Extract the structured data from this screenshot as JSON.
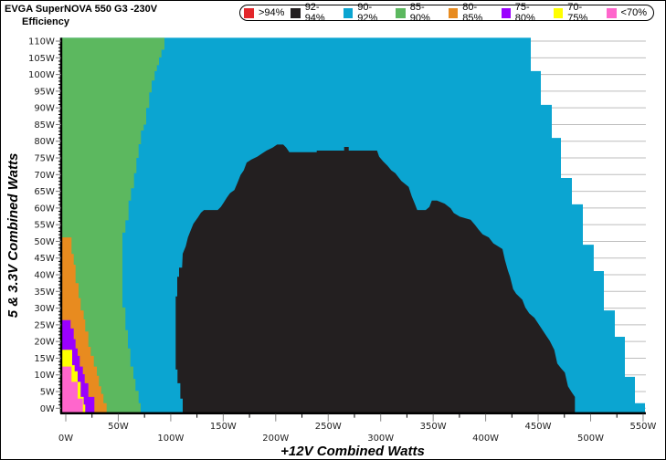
{
  "chart_data": {
    "type": "heatmap",
    "title": "EVGA SuperNOVA 550 G3 -230V",
    "subtitle": "Efficiency",
    "xlabel": "+12V Combined Watts",
    "ylabel": "5 & 3.3V Combined Watts",
    "xlim": [
      -4.4,
      552.6
    ],
    "ylim": [
      -1.2,
      111
    ],
    "grid": "horizontal",
    "legend_position": "top-right",
    "legend": [
      {
        "label": ">94%",
        "color": "#e3262b"
      },
      {
        "label": "92-94%",
        "color": "#231f20"
      },
      {
        "label": "90-92%",
        "color": "#0ba5d1"
      },
      {
        "label": "85-90%",
        "color": "#5cb85f"
      },
      {
        "label": "80-85%",
        "color": "#e88b1f"
      },
      {
        "label": "75-80%",
        "color": "#9b00ff"
      },
      {
        "label": "70-75%",
        "color": "#ffff00"
      },
      {
        "label": "<70%",
        "color": "#ff66cc"
      }
    ],
    "y_ticks": [
      {
        "value": 0,
        "label": "0W"
      },
      {
        "value": 5,
        "label": "5W"
      },
      {
        "value": 10,
        "label": "10W"
      },
      {
        "value": 15,
        "label": "15W"
      },
      {
        "value": 20,
        "label": "20W"
      },
      {
        "value": 25,
        "label": "25W"
      },
      {
        "value": 30,
        "label": "30W"
      },
      {
        "value": 35,
        "label": "35W"
      },
      {
        "value": 40,
        "label": "40W"
      },
      {
        "value": 45,
        "label": "45W"
      },
      {
        "value": 50,
        "label": "50W"
      },
      {
        "value": 55,
        "label": "55W"
      },
      {
        "value": 60,
        "label": "60W"
      },
      {
        "value": 65,
        "label": "65W"
      },
      {
        "value": 70,
        "label": "70W"
      },
      {
        "value": 75,
        "label": "75W"
      },
      {
        "value": 80,
        "label": "80W"
      },
      {
        "value": 85,
        "label": "85W"
      },
      {
        "value": 90,
        "label": "90W"
      },
      {
        "value": 95,
        "label": "95W"
      },
      {
        "value": 100,
        "label": "100W"
      },
      {
        "value": 105,
        "label": "105W"
      },
      {
        "value": 110,
        "label": "110W"
      }
    ],
    "x_ticks": [
      {
        "value": 0,
        "label": "0W"
      },
      {
        "value": 50,
        "label": "50W"
      },
      {
        "value": 100,
        "label": "100W"
      },
      {
        "value": 150,
        "label": "150W"
      },
      {
        "value": 200,
        "label": "200W"
      },
      {
        "value": 250,
        "label": "250W"
      },
      {
        "value": 300,
        "label": "300W"
      },
      {
        "value": 350,
        "label": "350W"
      },
      {
        "value": 400,
        "label": "400W"
      },
      {
        "value": 450,
        "label": "450W"
      },
      {
        "value": 500,
        "label": "500W"
      },
      {
        "value": 550,
        "label": "550W"
      }
    ],
    "regions": [
      {
        "category": "90-92%",
        "color": "#0ba5d1",
        "steps": [
          [
            -1.2,
            1.5,
            551.8
          ],
          [
            1.5,
            9.4,
            542.2
          ],
          [
            9.4,
            21.4,
            532.6
          ],
          [
            21.4,
            29.3,
            523.1
          ],
          [
            29.3,
            41.1,
            512.6
          ],
          [
            41.1,
            49.0,
            503.0
          ],
          [
            49.0,
            61.1,
            492.6
          ],
          [
            61.1,
            69.0,
            482.2
          ],
          [
            69.0,
            81.0,
            471.7
          ],
          [
            81.0,
            90.9,
            463.0
          ],
          [
            90.9,
            101.0,
            452.6
          ],
          [
            101.0,
            111,
            443.0
          ]
        ]
      },
      {
        "category": "85-90%",
        "color": "#5cb85f",
        "steps": [
          [
            -1.2,
            1.5,
            71.4
          ],
          [
            1.5,
            5.2,
            69.4
          ],
          [
            5.2,
            8.8,
            66.4
          ],
          [
            8.8,
            12.5,
            64.4
          ],
          [
            12.5,
            17.9,
            61.5
          ],
          [
            17.9,
            23.4,
            59.2
          ],
          [
            23.4,
            30.2,
            56.8
          ],
          [
            30.2,
            52.6,
            54.0
          ],
          [
            52.6,
            56.3,
            56.8
          ],
          [
            56.3,
            62.2,
            59.8
          ],
          [
            62.2,
            65.9,
            62.1
          ],
          [
            65.9,
            70.4,
            65.0
          ],
          [
            70.4,
            75.0,
            67.3
          ],
          [
            75.0,
            79.1,
            69.4
          ],
          [
            79.1,
            83.2,
            71.6
          ],
          [
            83.2,
            85.0,
            74.2
          ],
          [
            85.0,
            90.0,
            76.6
          ],
          [
            90.0,
            94.6,
            79.5
          ],
          [
            94.6,
            98.2,
            81.8
          ],
          [
            98.2,
            101.0,
            84.7
          ],
          [
            101.0,
            102.8,
            86.8
          ],
          [
            102.8,
            105.1,
            88.8
          ],
          [
            105.1,
            107.4,
            91.1
          ],
          [
            107.4,
            111,
            94.0
          ]
        ]
      },
      {
        "category": "80-85%",
        "color": "#e88b1f",
        "steps": [
          [
            -1.2,
            1.5,
            38.9
          ],
          [
            1.5,
            4.3,
            35.9
          ],
          [
            4.3,
            6.6,
            33.7
          ],
          [
            6.6,
            9.7,
            31.6
          ],
          [
            9.7,
            12.5,
            29.6
          ],
          [
            12.5,
            15.7,
            26.7
          ],
          [
            15.7,
            18.4,
            23.8
          ],
          [
            18.4,
            23.0,
            21.5
          ],
          [
            23.0,
            26.6,
            18.5
          ],
          [
            26.6,
            29.3,
            17.1
          ],
          [
            29.3,
            33.0,
            14.2
          ],
          [
            33.0,
            37.5,
            12.2
          ],
          [
            37.5,
            43.0,
            9.3
          ],
          [
            43.0,
            46.2,
            7.6
          ],
          [
            46.2,
            51.2,
            5.5
          ]
        ]
      },
      {
        "category": "75-80%",
        "color": "#9b00ff",
        "steps": [
          [
            -1.2,
            3.4,
            27.2
          ],
          [
            3.4,
            7.5,
            21.5
          ],
          [
            7.5,
            10.2,
            18.0
          ],
          [
            10.2,
            12.5,
            16.3
          ],
          [
            12.5,
            15.7,
            13.3
          ],
          [
            15.7,
            17.9,
            11.3
          ],
          [
            17.9,
            20.7,
            9.3
          ],
          [
            20.7,
            23.9,
            7.6
          ],
          [
            23.9,
            26.4,
            4.6
          ]
        ]
      },
      {
        "category": "70-75%",
        "color": "#ffff00",
        "steps": [
          [
            -1.2,
            1.1,
            18.5
          ],
          [
            1.1,
            3.4,
            17.1
          ],
          [
            3.4,
            7.9,
            14.2
          ],
          [
            7.9,
            11.1,
            11.3
          ],
          [
            11.1,
            12.9,
            8.4
          ],
          [
            12.9,
            17.5,
            6.1
          ]
        ]
      },
      {
        "category": "<70%",
        "color": "#ff66cc",
        "steps": [
          [
            -1.2,
            2.9,
            16.3
          ],
          [
            2.9,
            7.9,
            11.3
          ],
          [
            7.9,
            12.5,
            5.5
          ]
        ]
      }
    ],
    "core_region": {
      "category": "92-94%",
      "color": "#231f20",
      "points": [
        [
          111.4,
          -1.2
        ],
        [
          111.4,
          2.9
        ],
        [
          109.1,
          2.9
        ],
        [
          109.1,
          7.5
        ],
        [
          106.4,
          7.5
        ],
        [
          106.4,
          11.6
        ],
        [
          104.7,
          11.6
        ],
        [
          104.7,
          33.5
        ],
        [
          106.2,
          33.5
        ],
        [
          106.2,
          39.4
        ],
        [
          107.9,
          39.4
        ],
        [
          107.9,
          42.1
        ],
        [
          110.8,
          42.1
        ],
        [
          111.4,
          46.3
        ],
        [
          114.3,
          48.5
        ],
        [
          116.4,
          51.2
        ],
        [
          119.2,
          53.5
        ],
        [
          121.6,
          55.3
        ],
        [
          125.9,
          57.2
        ],
        [
          128.8,
          58.6
        ],
        [
          131.7,
          59.4
        ],
        [
          144.7,
          59.4
        ],
        [
          147.7,
          60.3
        ],
        [
          150.6,
          61.7
        ],
        [
          153.4,
          63.1
        ],
        [
          156.4,
          64.4
        ],
        [
          160.7,
          65.4
        ],
        [
          163.6,
          67.6
        ],
        [
          166.5,
          69.9
        ],
        [
          169.5,
          71.3
        ],
        [
          172.3,
          73.6
        ],
        [
          176.7,
          74.5
        ],
        [
          182.5,
          75.4
        ],
        [
          186.9,
          76.3
        ],
        [
          191.2,
          77.2
        ],
        [
          197.0,
          78.1
        ],
        [
          201.3,
          79.0
        ],
        [
          207.1,
          79.0
        ],
        [
          210.0,
          78.1
        ],
        [
          213.0,
          76.7
        ],
        [
          239.1,
          76.7
        ],
        [
          239.1,
          77.2
        ],
        [
          265.2,
          77.2
        ],
        [
          265.2,
          78.3
        ],
        [
          269.5,
          78.3
        ],
        [
          269.5,
          77.2
        ],
        [
          296.5,
          77.2
        ],
        [
          298.5,
          75.4
        ],
        [
          302.3,
          74.0
        ],
        [
          306.6,
          72.6
        ],
        [
          310.1,
          71.3
        ],
        [
          313.9,
          70.4
        ],
        [
          319.7,
          68.1
        ],
        [
          326.6,
          66.3
        ],
        [
          329.6,
          63.5
        ],
        [
          332.5,
          61.3
        ],
        [
          334.8,
          59.4
        ],
        [
          342.9,
          59.4
        ],
        [
          346.4,
          60.3
        ],
        [
          348.7,
          62.2
        ],
        [
          353.6,
          62.2
        ],
        [
          360.9,
          61.3
        ],
        [
          366.7,
          59.9
        ],
        [
          369.6,
          58.5
        ],
        [
          375.4,
          57.4
        ],
        [
          385.6,
          56.5
        ],
        [
          389.9,
          54.9
        ],
        [
          393.4,
          53.5
        ],
        [
          397.1,
          52.1
        ],
        [
          403.0,
          51.2
        ],
        [
          407.3,
          49.4
        ],
        [
          416.0,
          47.7
        ],
        [
          418.4,
          44.4
        ],
        [
          421.2,
          41.2
        ],
        [
          423.2,
          39.4
        ],
        [
          426.2,
          35.7
        ],
        [
          429.1,
          34.3
        ],
        [
          434.9,
          32.5
        ],
        [
          437.8,
          30.2
        ],
        [
          441.5,
          28.4
        ],
        [
          446.5,
          27.1
        ],
        [
          452.3,
          24.3
        ],
        [
          458.0,
          21.6
        ],
        [
          461.0,
          20.2
        ],
        [
          465.4,
          17.5
        ],
        [
          468.2,
          13.4
        ],
        [
          471.7,
          12.0
        ],
        [
          475.5,
          10.7
        ],
        [
          478.4,
          6.6
        ],
        [
          482.2,
          4.7
        ],
        [
          485.0,
          3.4
        ],
        [
          485.0,
          -1.2
        ]
      ]
    }
  }
}
